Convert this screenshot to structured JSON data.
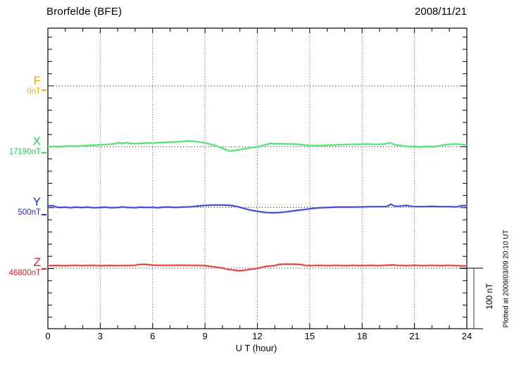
{
  "header": {
    "title": "Brorfelde (BFE)",
    "date": "2008/11/21"
  },
  "xaxis": {
    "label": "U T (hour)",
    "ticks": [
      "0",
      "3",
      "6",
      "9",
      "12",
      "15",
      "18",
      "21",
      "24"
    ]
  },
  "scale_bar": {
    "label": "100 nT"
  },
  "footer_note": "Plotted at 2009/03/09 20:10 UT",
  "components": [
    {
      "letter": "F",
      "value_label": "0nT",
      "color": "#FFA500"
    },
    {
      "letter": "X",
      "value_label": "17190nT",
      "color": "#1FCE4F"
    },
    {
      "letter": "Y",
      "value_label": "500nT",
      "color": "#2222DD"
    },
    {
      "letter": "Z",
      "value_label": "46800nT",
      "color": "#DD2222"
    }
  ],
  "chart_data": {
    "type": "line",
    "title": "Brorfelde (BFE)",
    "date": "2008/11/21",
    "xlabel": "U T (hour)",
    "xlim": [
      0,
      24
    ],
    "xticks": [
      0,
      3,
      6,
      9,
      12,
      15,
      18,
      21,
      24
    ],
    "x_minor_step_hours": 1,
    "grid": "dotted vertical every 3 h, dotted horizontal at each component baseline",
    "scale_bar_nT": 100,
    "series": [
      {
        "name": "F",
        "baseline_nT": 0,
        "color": "#FFA500",
        "band_color": "#FFD27F",
        "visible": false,
        "points": []
      },
      {
        "name": "X",
        "baseline_nT": 17190,
        "color": "#33DD55",
        "band_color": "#B4F2C6",
        "visible": true,
        "points": [
          [
            0,
            0
          ],
          [
            0.3,
            0.6
          ],
          [
            0.6,
            0.2
          ],
          [
            1,
            0.8
          ],
          [
            1.3,
            1.2
          ],
          [
            1.6,
            0.8
          ],
          [
            2,
            1.6
          ],
          [
            2.3,
            2.2
          ],
          [
            2.6,
            2.6
          ],
          [
            3,
            3.2
          ],
          [
            3.3,
            3.6
          ],
          [
            3.6,
            4.2
          ],
          [
            3.9,
            5.2
          ],
          [
            4.1,
            6.8
          ],
          [
            4.3,
            5.2
          ],
          [
            4.5,
            6.8
          ],
          [
            4.7,
            5.6
          ],
          [
            5,
            5.2
          ],
          [
            5.3,
            5.6
          ],
          [
            5.6,
            6
          ],
          [
            6,
            6.2
          ],
          [
            6.3,
            6.6
          ],
          [
            6.6,
            7
          ],
          [
            7,
            7.6
          ],
          [
            7.3,
            8
          ],
          [
            7.6,
            8.6
          ],
          [
            7.9,
            9.2
          ],
          [
            8.1,
            9.6
          ],
          [
            8.4,
            8.8
          ],
          [
            8.7,
            7.6
          ],
          [
            9,
            6.2
          ],
          [
            9.3,
            4.2
          ],
          [
            9.6,
            1.8
          ],
          [
            9.9,
            -1
          ],
          [
            10.1,
            -3.6
          ],
          [
            10.3,
            -6
          ],
          [
            10.5,
            -7.2
          ],
          [
            10.7,
            -6
          ],
          [
            11,
            -4.6
          ],
          [
            11.3,
            -3
          ],
          [
            11.6,
            -1.6
          ],
          [
            12,
            -0.4
          ],
          [
            12.3,
            1.8
          ],
          [
            12.6,
            4.4
          ],
          [
            12.8,
            5.6
          ],
          [
            13,
            4.6
          ],
          [
            13.3,
            5.2
          ],
          [
            13.6,
            4.6
          ],
          [
            14,
            4.6
          ],
          [
            14.3,
            4
          ],
          [
            14.7,
            2.8
          ],
          [
            15,
            2.2
          ],
          [
            15.5,
            2
          ],
          [
            16,
            2.6
          ],
          [
            16.5,
            3
          ],
          [
            17,
            3.6
          ],
          [
            17.5,
            4
          ],
          [
            18,
            4.2
          ],
          [
            18.3,
            4.6
          ],
          [
            18.6,
            4
          ],
          [
            19,
            4
          ],
          [
            19.3,
            4.6
          ],
          [
            19.6,
            6.6
          ],
          [
            19.8,
            4.2
          ],
          [
            20,
            2.6
          ],
          [
            20.3,
            1.6
          ],
          [
            20.6,
            0.6
          ],
          [
            21,
            0.2
          ],
          [
            21.3,
            -0.4
          ],
          [
            21.6,
            0.6
          ],
          [
            22,
            0.2
          ],
          [
            22.4,
            1.2
          ],
          [
            22.7,
            3
          ],
          [
            23,
            4
          ],
          [
            23.3,
            4.6
          ],
          [
            23.6,
            4
          ],
          [
            23.8,
            3.2
          ],
          [
            24,
            3.4
          ]
        ]
      },
      {
        "name": "Y",
        "baseline_nT": 500,
        "color": "#2233CC",
        "band_color": "#A8B0E8",
        "visible": true,
        "points": [
          [
            0,
            2.6
          ],
          [
            0.3,
            2.4
          ],
          [
            0.45,
            0.6
          ],
          [
            0.7,
            -0.4
          ],
          [
            1,
            0.2
          ],
          [
            1.3,
            -0.8
          ],
          [
            1.6,
            0.2
          ],
          [
            2,
            -0.4
          ],
          [
            2.3,
            0.4
          ],
          [
            2.6,
            -0.8
          ],
          [
            3,
            -0.4
          ],
          [
            3.3,
            0.2
          ],
          [
            3.6,
            -0.8
          ],
          [
            4,
            -0.4
          ],
          [
            4.3,
            0.6
          ],
          [
            4.6,
            -0.4
          ],
          [
            5,
            -0.8
          ],
          [
            5.3,
            0.2
          ],
          [
            5.6,
            -0.4
          ],
          [
            6,
            0
          ],
          [
            6.3,
            -0.8
          ],
          [
            6.6,
            0.2
          ],
          [
            7,
            0.4
          ],
          [
            7.3,
            -0.4
          ],
          [
            7.6,
            0.2
          ],
          [
            8,
            0.6
          ],
          [
            8.3,
            1
          ],
          [
            8.6,
            2
          ],
          [
            9,
            3
          ],
          [
            9.5,
            3.6
          ],
          [
            10,
            3.6
          ],
          [
            10.4,
            3.2
          ],
          [
            10.7,
            2
          ],
          [
            11,
            0
          ],
          [
            11.3,
            -2.4
          ],
          [
            11.6,
            -4.6
          ],
          [
            12,
            -6.6
          ],
          [
            12.3,
            -8
          ],
          [
            12.6,
            -8.8
          ],
          [
            13,
            -9
          ],
          [
            13.3,
            -8.6
          ],
          [
            13.6,
            -7.6
          ],
          [
            14,
            -6.2
          ],
          [
            14.3,
            -5
          ],
          [
            14.6,
            -4
          ],
          [
            15,
            -2.4
          ],
          [
            15.3,
            -1.4
          ],
          [
            15.6,
            -0.8
          ],
          [
            16,
            -0.4
          ],
          [
            16.5,
            0.2
          ],
          [
            17,
            0.4
          ],
          [
            17.5,
            0.4
          ],
          [
            18,
            0.6
          ],
          [
            18.5,
            1
          ],
          [
            19,
            1
          ],
          [
            19.4,
            1.2
          ],
          [
            19.65,
            5
          ],
          [
            19.85,
            2
          ],
          [
            20.1,
            1.6
          ],
          [
            20.5,
            3
          ],
          [
            20.8,
            1.6
          ],
          [
            21,
            1.2
          ],
          [
            21.5,
            1
          ],
          [
            22,
            1.4
          ],
          [
            22.5,
            1
          ],
          [
            23,
            1
          ],
          [
            23.4,
            0.6
          ],
          [
            23.7,
            2.6
          ],
          [
            24,
            2.8
          ]
        ]
      },
      {
        "name": "Z",
        "baseline_nT": 46800,
        "color": "#DD2222",
        "band_color": "#F5B0B0",
        "visible": true,
        "points": [
          [
            0,
            4
          ],
          [
            0.5,
            4.4
          ],
          [
            1,
            4
          ],
          [
            1.5,
            4.6
          ],
          [
            2,
            4.2
          ],
          [
            2.5,
            4.6
          ],
          [
            3,
            4
          ],
          [
            3.5,
            4.4
          ],
          [
            4,
            4.2
          ],
          [
            4.5,
            4.4
          ],
          [
            5,
            4.6
          ],
          [
            5.2,
            6
          ],
          [
            5.6,
            6.4
          ],
          [
            6,
            5
          ],
          [
            6.5,
            4.6
          ],
          [
            7,
            4.6
          ],
          [
            7.5,
            5
          ],
          [
            8,
            4.6
          ],
          [
            8.5,
            4.6
          ],
          [
            9,
            4.2
          ],
          [
            9.5,
            2.2
          ],
          [
            10,
            0.2
          ],
          [
            10.3,
            -1.8
          ],
          [
            10.7,
            -3.4
          ],
          [
            11,
            -4.4
          ],
          [
            11.3,
            -3.4
          ],
          [
            11.6,
            -2
          ],
          [
            12,
            -0.4
          ],
          [
            12.5,
            3
          ],
          [
            13,
            4.2
          ],
          [
            13.2,
            6
          ],
          [
            13.5,
            6.6
          ],
          [
            14,
            6.6
          ],
          [
            14.5,
            6
          ],
          [
            14.7,
            4.6
          ],
          [
            15,
            4.2
          ],
          [
            15.5,
            4.6
          ],
          [
            16,
            4.2
          ],
          [
            16.5,
            4.6
          ],
          [
            17,
            4.2
          ],
          [
            17.5,
            4.6
          ],
          [
            18,
            4.2
          ],
          [
            18.5,
            4.6
          ],
          [
            19,
            4.2
          ],
          [
            19.5,
            5
          ],
          [
            19.8,
            5.4
          ],
          [
            20,
            4.6
          ],
          [
            20.5,
            4.2
          ],
          [
            21,
            4.6
          ],
          [
            21.5,
            4.2
          ],
          [
            22,
            4.6
          ],
          [
            22.5,
            4.2
          ],
          [
            23,
            4.6
          ],
          [
            23.5,
            4
          ],
          [
            24,
            3.6
          ]
        ]
      }
    ]
  }
}
